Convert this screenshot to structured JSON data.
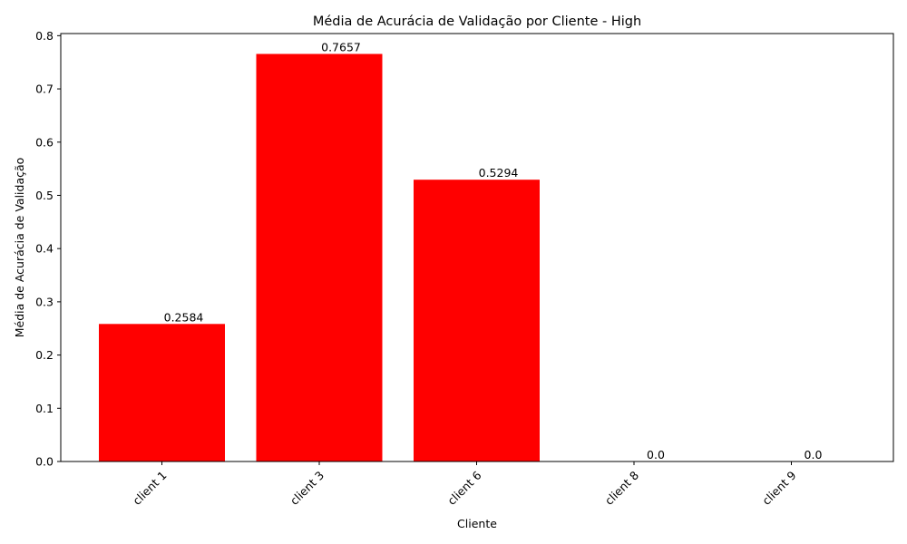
{
  "chart_data": {
    "type": "bar",
    "title": "Média de Acurácia de Validação por Cliente - High",
    "xlabel": "Cliente",
    "ylabel": "Média de Acurácia de Validação",
    "categories": [
      "client 1",
      "client 3",
      "client 6",
      "client 8",
      "client 9"
    ],
    "values": [
      0.2584,
      0.7657,
      0.5294,
      0.0,
      0.0
    ],
    "value_labels": [
      "0.2584",
      "0.7657",
      "0.5294",
      "0.0",
      "0.0"
    ],
    "ylim": [
      0,
      0.804
    ],
    "yticks": [
      0.0,
      0.1,
      0.2,
      0.3,
      0.4,
      0.5,
      0.6,
      0.7,
      0.8
    ],
    "ytick_labels": [
      "0.0",
      "0.1",
      "0.2",
      "0.3",
      "0.4",
      "0.5",
      "0.6",
      "0.7",
      "0.8"
    ],
    "grid": false,
    "bar_color": "#ff0000",
    "xtick_rotation_deg": 45
  }
}
